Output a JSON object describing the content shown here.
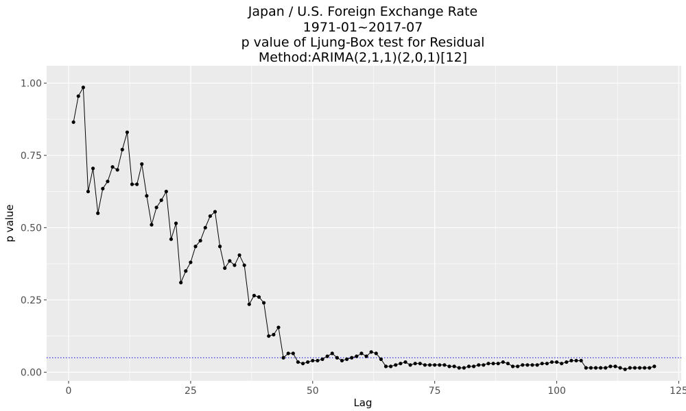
{
  "chart_data": {
    "type": "line",
    "title_lines": [
      "Japan / U.S. Foreign Exchange Rate",
      "1971-01~2017-07",
      "p value of Ljung-Box test for Residual",
      "Method:ARIMA(2,1,1)(2,0,1)[12]"
    ],
    "xlabel": "Lag",
    "ylabel": "p value",
    "xlim": [
      -4.5,
      125.5
    ],
    "ylim": [
      -0.03,
      1.06
    ],
    "x_ticks": [
      0,
      25,
      50,
      75,
      100,
      125
    ],
    "x_tick_labels": [
      "0",
      "25",
      "50",
      "75",
      "100",
      "125"
    ],
    "y_ticks": [
      0.0,
      0.25,
      0.5,
      0.75,
      1.0
    ],
    "y_tick_labels": [
      "0.00",
      "0.25",
      "0.50",
      "0.75",
      "1.00"
    ],
    "grid": true,
    "reference_line": {
      "y": 0.05,
      "color": "#0000ff",
      "style": "dotted"
    },
    "colors": {
      "panel_background": "#ebebeb",
      "grid": "#ffffff",
      "line": "#000000",
      "point": "#000000"
    },
    "series": [
      {
        "x": [
          1,
          2,
          3,
          4,
          5,
          6,
          7,
          8,
          9,
          10,
          11,
          12,
          13,
          14,
          15,
          16,
          17,
          18,
          19,
          20,
          21,
          22,
          23,
          24,
          25,
          26,
          27,
          28,
          29,
          30,
          31,
          32,
          33,
          34,
          35,
          36,
          37,
          38,
          39,
          40,
          41,
          42,
          43,
          44,
          45,
          46,
          47,
          48,
          49,
          50,
          51,
          52,
          53,
          54,
          55,
          56,
          57,
          58,
          59,
          60,
          61,
          62,
          63,
          64,
          65,
          66,
          67,
          68,
          69,
          70,
          71,
          72,
          73,
          74,
          75,
          76,
          77,
          78,
          79,
          80,
          81,
          82,
          83,
          84,
          85,
          86,
          87,
          88,
          89,
          90,
          91,
          92,
          93,
          94,
          95,
          96,
          97,
          98,
          99,
          100,
          101,
          102,
          103,
          104,
          105,
          106,
          107,
          108,
          109,
          110,
          111,
          112,
          113,
          114,
          115,
          116,
          117,
          118,
          119,
          120
        ],
        "values": [
          0.865,
          0.955,
          0.985,
          0.625,
          0.705,
          0.55,
          0.635,
          0.66,
          0.71,
          0.7,
          0.77,
          0.83,
          0.65,
          0.65,
          0.72,
          0.61,
          0.51,
          0.57,
          0.595,
          0.625,
          0.46,
          0.515,
          0.31,
          0.35,
          0.38,
          0.435,
          0.455,
          0.5,
          0.54,
          0.555,
          0.435,
          0.36,
          0.385,
          0.37,
          0.405,
          0.37,
          0.235,
          0.265,
          0.26,
          0.24,
          0.125,
          0.13,
          0.155,
          0.05,
          0.065,
          0.065,
          0.035,
          0.03,
          0.035,
          0.04,
          0.04,
          0.045,
          0.055,
          0.065,
          0.05,
          0.04,
          0.045,
          0.05,
          0.055,
          0.065,
          0.055,
          0.07,
          0.065,
          0.045,
          0.02,
          0.02,
          0.025,
          0.03,
          0.035,
          0.025,
          0.03,
          0.03,
          0.025,
          0.025,
          0.025,
          0.025,
          0.025,
          0.02,
          0.02,
          0.015,
          0.015,
          0.02,
          0.02,
          0.025,
          0.025,
          0.03,
          0.03,
          0.03,
          0.035,
          0.03,
          0.02,
          0.02,
          0.025,
          0.025,
          0.025,
          0.025,
          0.03,
          0.03,
          0.035,
          0.035,
          0.03,
          0.035,
          0.04,
          0.04,
          0.04,
          0.015,
          0.015,
          0.015,
          0.015,
          0.015,
          0.02,
          0.02,
          0.015,
          0.01,
          0.015,
          0.015,
          0.015,
          0.015,
          0.015,
          0.02
        ]
      }
    ]
  }
}
